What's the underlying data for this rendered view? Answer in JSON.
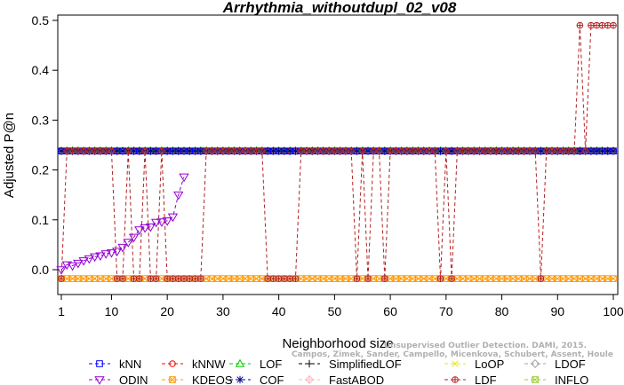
{
  "chart_data": {
    "type": "line",
    "title": "Arrhythmia_withoutdupl_02_v08",
    "xlabel": "Neighborhood size",
    "ylabel": "Adjusted P@n",
    "xlim": [
      1,
      100
    ],
    "ylim": [
      -0.04,
      0.5
    ],
    "x_ticks": [
      1,
      10,
      20,
      30,
      40,
      50,
      60,
      70,
      80,
      90,
      100
    ],
    "y_ticks": [
      0.0,
      0.1,
      0.2,
      0.3,
      0.4,
      0.5
    ],
    "x_tick_labels": [
      "1",
      "10",
      "20",
      "30",
      "40",
      "50",
      "60",
      "70",
      "80",
      "90",
      "100"
    ],
    "y_tick_labels": [
      "0.0",
      "0.1",
      "0.2",
      "0.3",
      "0.4",
      "0.5"
    ],
    "grid": false,
    "legend_position": "bottom",
    "watermark": [
      "Campos, Zimek, Sander, Campello, Micenkova, Schubert, Assent, Houle",
      "Unsupervised Outlier Detection. DAMI, 2015."
    ],
    "series": [
      {
        "name": "kNN",
        "color": "#0000ff",
        "marker": "square",
        "constant": 0.238
      },
      {
        "name": "kNNW",
        "color": "#ff0000",
        "marker": "circle",
        "constant": 0.238
      },
      {
        "name": "LOF",
        "color": "#00cc00",
        "marker": "triangle-up",
        "constant": 0.238
      },
      {
        "name": "SimplifiedLOF",
        "color": "#000000",
        "marker": "plus",
        "constant": 0.238
      },
      {
        "name": "LoOP",
        "color": "#e8e800",
        "marker": "x",
        "constant": 0.238
      },
      {
        "name": "LDOF",
        "color": "#a0a0a0",
        "marker": "diamond",
        "constant": 0.238
      },
      {
        "name": "ODIN",
        "color": "#9400d3",
        "marker": "triangle-down",
        "x": [
          1,
          2,
          3,
          4,
          5,
          6,
          7,
          8,
          9,
          10,
          11,
          12,
          13,
          14,
          15,
          16,
          17,
          18,
          19,
          20,
          21,
          22,
          23
        ],
        "y": [
          0.0,
          0.01,
          0.008,
          0.013,
          0.018,
          0.022,
          0.026,
          0.028,
          0.032,
          0.034,
          0.037,
          0.045,
          0.055,
          0.065,
          0.08,
          0.084,
          0.086,
          0.095,
          0.096,
          0.098,
          0.106,
          0.15,
          0.186
        ]
      },
      {
        "name": "KDEOS",
        "color": "#ff9900",
        "marker": "box-x",
        "constant": -0.018
      },
      {
        "name": "COF",
        "color": "#00008b",
        "marker": "asterisk",
        "constant": 0.238
      },
      {
        "name": "FastABOD",
        "color": "#ffb6c1",
        "marker": "diamond-plus",
        "constant": 0.238
      },
      {
        "name": "LDF",
        "color": "#b22222",
        "marker": "circle-plus",
        "high_value": 0.238,
        "low_value": -0.018,
        "low_x": [
          1,
          11,
          12,
          14,
          15,
          17,
          18,
          20,
          21,
          22,
          23,
          24,
          25,
          26,
          38,
          39,
          40,
          41,
          42,
          43,
          54,
          56,
          59,
          69,
          71,
          87
        ],
        "peak_value": 0.49,
        "peak_x": [
          94,
          96,
          97,
          98,
          99,
          100
        ]
      },
      {
        "name": "INFLO",
        "color": "#99cc33",
        "marker": "box-x",
        "constant": 0.238
      }
    ]
  }
}
